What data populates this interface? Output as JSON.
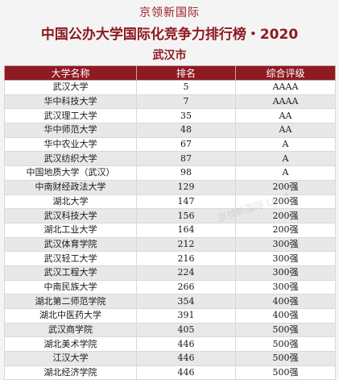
{
  "brand": "京领新国际",
  "title": "中国公办大学国际化竞争力排行榜・2020",
  "city": "武汉市",
  "table": {
    "headers": [
      "大学名称",
      "排名",
      "综合评级"
    ],
    "rows": [
      {
        "name": "武汉大学",
        "rank": "5",
        "grade": "AAAA"
      },
      {
        "name": "华中科技大学",
        "rank": "7",
        "grade": "AAAA"
      },
      {
        "name": "武汉理工大学",
        "rank": "35",
        "grade": "AA"
      },
      {
        "name": "华中师范大学",
        "rank": "48",
        "grade": "AA"
      },
      {
        "name": "华中农业大学",
        "rank": "67",
        "grade": "A"
      },
      {
        "name": "武汉纺织大学",
        "rank": "87",
        "grade": "A"
      },
      {
        "name": "中国地质大学（武汉）",
        "rank": "98",
        "grade": "A"
      },
      {
        "name": "中南财经政法大学",
        "rank": "129",
        "grade": "200强"
      },
      {
        "name": "湖北大学",
        "rank": "147",
        "grade": "200强"
      },
      {
        "name": "武汉科技大学",
        "rank": "156",
        "grade": "200强"
      },
      {
        "name": "湖北工业大学",
        "rank": "164",
        "grade": "200强"
      },
      {
        "name": "武汉体育学院",
        "rank": "212",
        "grade": "300强"
      },
      {
        "name": "武汉轻工大学",
        "rank": "216",
        "grade": "300强"
      },
      {
        "name": "武汉工程大学",
        "rank": "224",
        "grade": "300强"
      },
      {
        "name": "中南民族大学",
        "rank": "266",
        "grade": "300强"
      },
      {
        "name": "湖北第二师范学院",
        "rank": "354",
        "grade": "400强"
      },
      {
        "name": "湖北中医药大学",
        "rank": "391",
        "grade": "400强"
      },
      {
        "name": "武汉商学院",
        "rank": "405",
        "grade": "500强"
      },
      {
        "name": "湖北美术学院",
        "rank": "446",
        "grade": "500强"
      },
      {
        "name": "江汉大学",
        "rank": "446",
        "grade": "500强"
      },
      {
        "name": "湖北经济学院",
        "rank": "446",
        "grade": "500强"
      }
    ]
  },
  "watermark": "京领新国际 Lead"
}
